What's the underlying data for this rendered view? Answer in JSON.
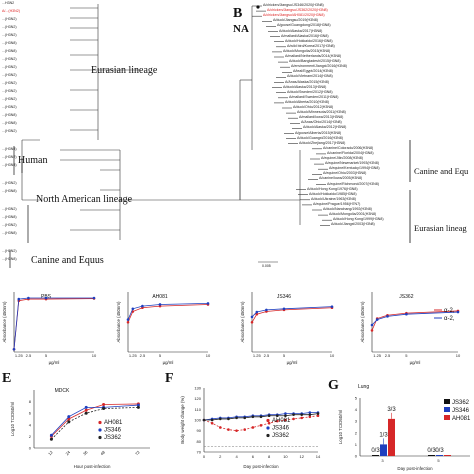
{
  "panel_b_letter": "B",
  "panel_b_title": "NA",
  "panel_e_letter": "E",
  "panel_f_letter": "F",
  "panel_g_letter": "G",
  "clades": {
    "eurasian": "Eurasian lineage",
    "human": "Human",
    "north_american": "North American lineage",
    "canine_equus_left": "Canine and Equus",
    "canine_equus_right": "Canine and Equ",
    "eurasian_right": "Eurasian lineag"
  },
  "scale_bar": "0.005",
  "left_tree_labels": [
    "...H3N2",
    "A/...(H3N2)",
    "...(H3N2)",
    "...(H3N2)",
    "...(H3N2)",
    "...(H3N8)",
    "...(H3N8)",
    "...(H3N2)",
    "...(H3N2)",
    "...(H3N2)",
    "...(H3N2)",
    "...(H3N2)",
    "...(H3N2)",
    "...(H3N2)",
    "...(H3N8)",
    "...(H3N8)",
    "...(H3N2)",
    "...(H3N8)",
    "...(H3N2)",
    "...(H3N8)",
    "...(H3N2)",
    "...(H3N8)",
    "...(H3N2)",
    "...(H3N8)",
    "...(H3N2)",
    "...(H3N8)",
    "...(H3N2)",
    "...(H3N8)"
  ],
  "right_tree_labels": [
    "A/chicken/Jiangsu/JS346/2020(H3N8)",
    "A/chicken/Jiangsu/JS362/2020(H3N8)",
    "A/chicken/Jiangsu/AH081/2020(H3N8)",
    "A/duck/Jiangsu/2019(H3N8)",
    "A/goose/Guangdong/2018(H3N8)",
    "A/duck/Alaska/2017(H3N8)",
    "A/mallard/Alaska/2016(H3N8)",
    "A/duck/Hokkaido/2016(H3N8)",
    "A/wild bird/Korea/2017(H3N8)",
    "A/duck/Mongolia/2015(H3N8)",
    "A/mallard/Netherlands/2014(H3N8)",
    "A/duck/Bangladesh/2015(H3N8)",
    "A/environment/Jiangxi/2016(H3N8)",
    "A/teal/Egypt/2014(H3N8)",
    "A/duck/Vietnam/2014(H3N8)",
    "A/Anas/Alaska/2015(H3N8)",
    "A/duck/Alaska/2013(H3N8)",
    "A/duck/Sweden/2012(H3N8)",
    "A/mallard/Sweden/2011(H3N8)",
    "A/duck/Alberta/2010(H3N8)",
    "A/duck/Ohio/2012(H3N8)",
    "A/duck/Minnesota/2011(H3N8)",
    "A/mallard/Iowa/2013(H3N8)",
    "A/Anas/Ohio/2014(H3N8)",
    "A/duck/Alaska/2012(H3N8)",
    "A/goose/Alberta/2015(H3N8)",
    "A/duck/Guangxi/2016(H3N8)",
    "A/duck/Zhejiang/2017(H3N8)",
    "A/canine/Colorado/2006(H3N8)",
    "A/canine/Florida/2004(H3N8)",
    "A/equine/Jilin/2008(H3N8)",
    "A/equine/Newmarket/1993(H3N8)",
    "A/equine/Kentucky/1994(H3N8)",
    "A/equine/Ohio/2003(H3N8)",
    "A/canine/Iowa/2005(H3N8)",
    "A/equine/Richmond/2007(H3N8)",
    "A/duck/Hong Kong/1976(H3N8)",
    "A/duck/Hokkaido/1985(H3N8)",
    "A/duck/Ukraine/1963(H3N8)",
    "A/equine/Prague/1956(H7N7)",
    "A/duck/Nanchang/1992(H3N8)",
    "A/duck/Mongolia/2001(H3N8)",
    "A/duck/Hong Kong/1999(H3N8)",
    "A/duck/Jiangxi/2003(H3N8)"
  ],
  "binding_panels": [
    {
      "title": "PBS",
      "ylabel": "Absorbance (450nm)",
      "xlabel": "µg/ml",
      "xticks": [
        "1.25",
        "2.5",
        "5",
        "10"
      ]
    },
    {
      "title": "AH081",
      "ylabel": "Absorbance (450nm)",
      "xlabel": "µg/ml",
      "xticks": [
        "1.25",
        "2.5",
        "5",
        "10"
      ]
    },
    {
      "title": "JS346",
      "ylabel": "Absorbance (450nm)",
      "xlabel": "µg/ml",
      "xticks": [
        "1.25",
        "2.5",
        "5",
        "10"
      ]
    },
    {
      "title": "JS362",
      "ylabel": "Absorbance (450nm)",
      "xlabel": "µg/ml",
      "xticks": [
        "1.25",
        "2.5",
        "5",
        "10"
      ],
      "legend": [
        "α-2,",
        "α-2,"
      ]
    }
  ],
  "chart_data": [
    {
      "type": "line",
      "title": "MDCK",
      "xlabel": "Hour post-infection",
      "ylabel": "Log10 TCID50/ml",
      "x": [
        12,
        24,
        36,
        48,
        72
      ],
      "ylim": [
        0,
        10
      ],
      "series": [
        {
          "name": "AH081",
          "color": "#d62728",
          "values": [
            2.0,
            5.0,
            6.5,
            7.5,
            7.6
          ]
        },
        {
          "name": "JS346",
          "color": "#1f3fbf",
          "values": [
            2.2,
            5.4,
            7.0,
            7.0,
            7.4
          ]
        },
        {
          "name": "JS362",
          "color": "#222222",
          "values": [
            1.5,
            4.5,
            6.0,
            6.8,
            7.0
          ]
        }
      ]
    },
    {
      "type": "line",
      "xlabel": "Day post-infection",
      "ylabel": "Body weight change (%)",
      "x": [
        0,
        1,
        2,
        3,
        4,
        5,
        6,
        7,
        8,
        9,
        10,
        11,
        12,
        13,
        14
      ],
      "ylim": [
        70,
        130
      ],
      "yticks": [
        70,
        80,
        90,
        100,
        110,
        120,
        130
      ],
      "series": [
        {
          "name": "AH081",
          "color": "#d62728",
          "values": [
            100,
            97,
            93,
            91,
            90,
            91,
            93,
            95,
            97,
            99,
            100,
            101,
            102,
            103,
            104
          ]
        },
        {
          "name": "JS346",
          "color": "#1f3fbf",
          "values": [
            100,
            101,
            102,
            102,
            103,
            103,
            104,
            104,
            105,
            105,
            106,
            106,
            106,
            107,
            107
          ]
        },
        {
          "name": "JS362",
          "color": "#222222",
          "values": [
            100,
            100,
            101,
            101,
            102,
            102,
            103,
            103,
            104,
            104,
            104,
            105,
            105,
            105,
            106
          ]
        }
      ]
    },
    {
      "type": "bar",
      "title": "Lung",
      "xlabel": "Day post-infection",
      "ylabel": "Log10 TCID50/ml",
      "categories": [
        "3",
        "5"
      ],
      "ylim": [
        0,
        5
      ],
      "series": [
        {
          "name": "JS362",
          "color": "#111111",
          "values": [
            0,
            0
          ]
        },
        {
          "name": "JS346",
          "color": "#1f3fbf",
          "values": [
            1.0,
            0
          ]
        },
        {
          "name": "AH081",
          "color": "#d62728",
          "values": [
            3.2,
            0
          ]
        }
      ],
      "annotations": [
        "0/3",
        "1/3",
        "3/3",
        "0/3",
        "0/3"
      ],
      "legend": [
        "JS362",
        "JS346",
        "AH081"
      ]
    }
  ]
}
